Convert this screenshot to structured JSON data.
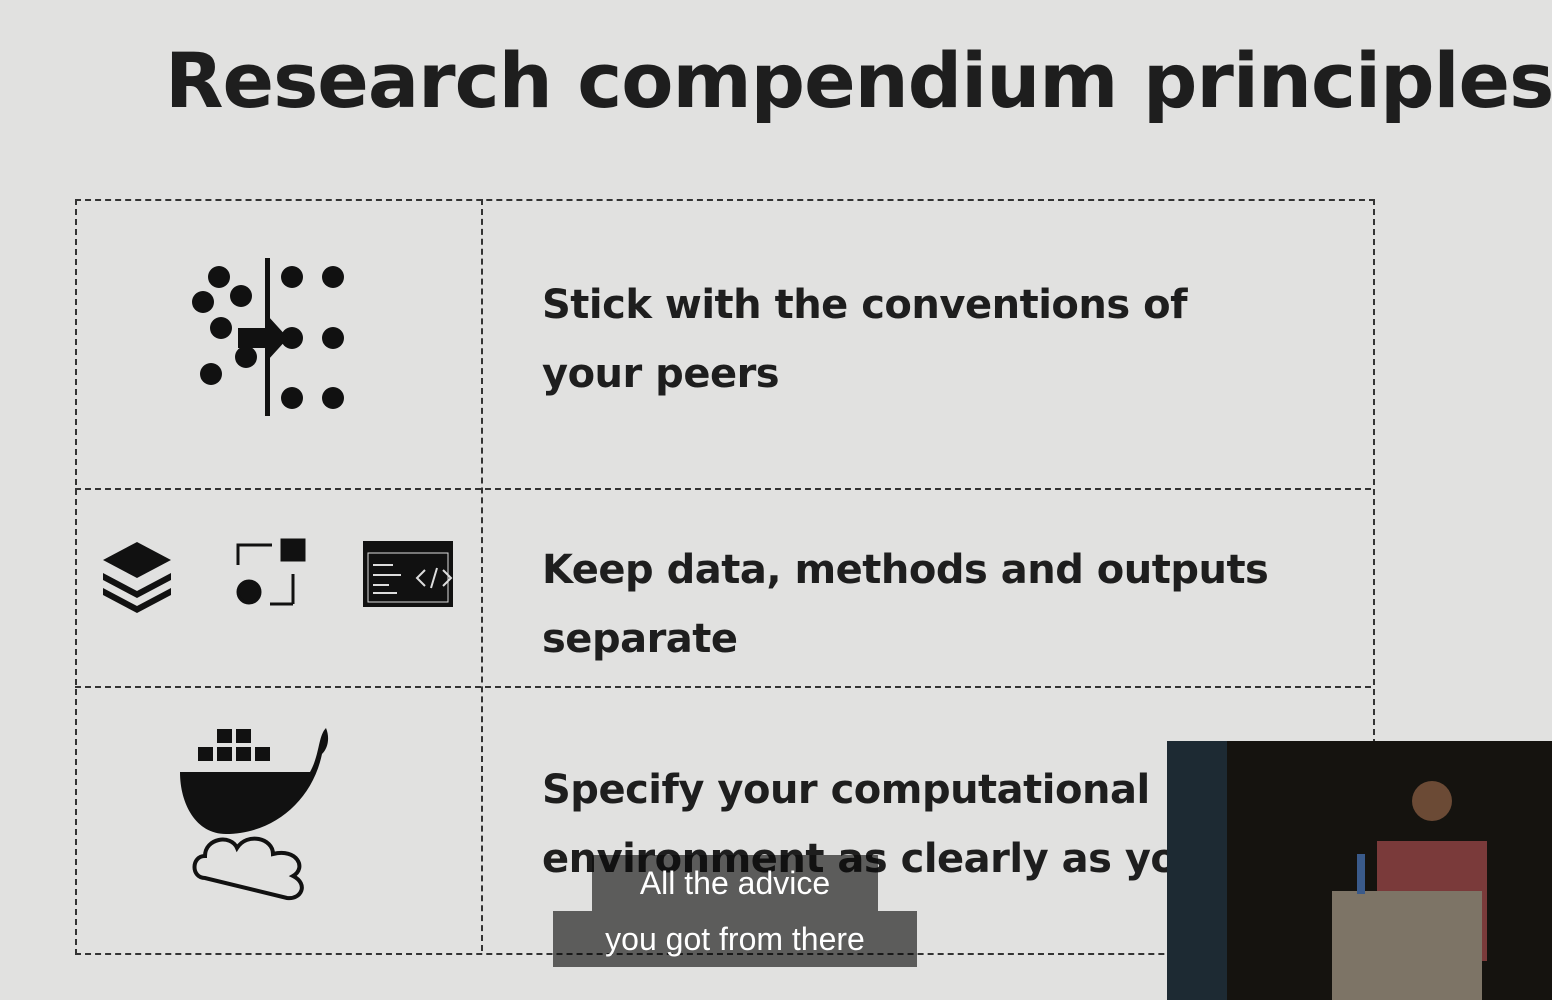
{
  "slide": {
    "title": "Research compendium principles",
    "principles": [
      [
        "Stick with the conventions of",
        "your peers"
      ],
      [
        "Keep data, methods and outputs",
        "separate"
      ],
      [
        "Specify your computational",
        "environment as clearly as you c"
      ]
    ]
  },
  "captions": [
    "All the advice",
    "you got from there"
  ]
}
